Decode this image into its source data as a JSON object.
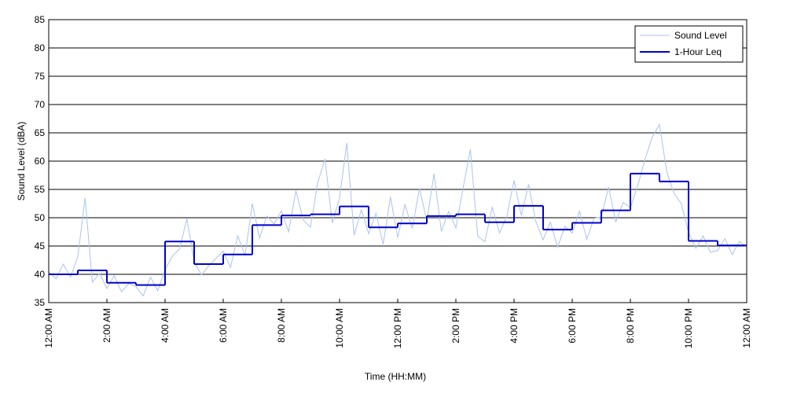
{
  "chart_data": {
    "type": "line",
    "xlabel": "Time (HH:MM)",
    "ylabel": "Sound Level (dBA)",
    "xlim": [
      0,
      24
    ],
    "ylim": [
      35,
      85
    ],
    "xticks": [
      {
        "value": 0,
        "label": "12:00 AM"
      },
      {
        "value": 2,
        "label": "2:00 AM"
      },
      {
        "value": 4,
        "label": "4:00 AM"
      },
      {
        "value": 6,
        "label": "6:00 AM"
      },
      {
        "value": 8,
        "label": "8:00 AM"
      },
      {
        "value": 10,
        "label": "10:00 AM"
      },
      {
        "value": 12,
        "label": "12:00 PM"
      },
      {
        "value": 14,
        "label": "2:00 PM"
      },
      {
        "value": 16,
        "label": "4:00 PM"
      },
      {
        "value": 18,
        "label": "6:00 PM"
      },
      {
        "value": 20,
        "label": "8:00 PM"
      },
      {
        "value": 22,
        "label": "10:00 PM"
      },
      {
        "value": 24,
        "label": "12:00 AM"
      }
    ],
    "yticks": [
      35,
      40,
      45,
      50,
      55,
      60,
      65,
      70,
      75,
      80,
      85
    ],
    "grid": true,
    "legend": "upper right",
    "series": [
      {
        "name": "Sound Level",
        "color": "#a9c3f0",
        "x": [
          0,
          0.25,
          0.5,
          0.75,
          1,
          1.25,
          1.5,
          1.75,
          2,
          2.25,
          2.5,
          2.75,
          3,
          3.25,
          3.5,
          3.75,
          4,
          4.25,
          4.5,
          4.75,
          5,
          5.25,
          5.5,
          5.75,
          6,
          6.25,
          6.5,
          6.75,
          7,
          7.25,
          7.5,
          7.75,
          8,
          8.25,
          8.5,
          8.75,
          9,
          9.25,
          9.5,
          9.75,
          10,
          10.25,
          10.5,
          10.75,
          11,
          11.25,
          11.5,
          11.75,
          12,
          12.25,
          12.5,
          12.75,
          13,
          13.25,
          13.5,
          13.75,
          14,
          14.25,
          14.5,
          14.75,
          15,
          15.25,
          15.5,
          15.75,
          16,
          16.25,
          16.5,
          16.75,
          17,
          17.25,
          17.5,
          17.75,
          18,
          18.25,
          18.5,
          18.75,
          19,
          19.25,
          19.5,
          19.75,
          20,
          20.25,
          20.5,
          20.75,
          21,
          21.25,
          21.5,
          21.75,
          22,
          22.25,
          22.5,
          22.75,
          23,
          23.25,
          23.5,
          23.75,
          24
        ],
        "values": [
          40.5,
          39.2,
          41.8,
          39.5,
          43.1,
          53.5,
          38.6,
          40.2,
          37.5,
          39.8,
          36.9,
          38.4,
          37.8,
          36.2,
          39.5,
          37.1,
          40.8,
          43.2,
          44.5,
          49.8,
          42.3,
          39.9,
          41.5,
          42.8,
          44.1,
          41.2,
          46.8,
          43.3,
          52.5,
          46.4,
          50.3,
          48.9,
          51.2,
          47.5,
          54.8,
          49.6,
          48.3,
          56.2,
          60.4,
          49.1,
          53.5,
          63.2,
          46.9,
          51.4,
          47.2,
          50.8,
          45.3,
          53.7,
          46.5,
          52.3,
          48.1,
          55.2,
          49.4,
          57.8,
          47.6,
          51.1,
          48.2,
          55.3,
          62.1,
          46.7,
          45.8,
          51.9,
          47.3,
          50.2,
          56.6,
          50.4,
          55.9,
          49.3,
          46.1,
          49.2,
          44.8,
          48.5,
          47.3,
          51.2,
          46.2,
          49.9,
          50.1,
          55.4,
          49.3,
          52.7,
          51.8,
          55.6,
          60.3,
          64.2,
          66.5,
          58.1,
          54.3,
          52.5,
          47.4,
          44.6,
          46.8,
          43.9,
          44.2,
          46.3,
          43.5,
          45.8,
          44.8
        ]
      },
      {
        "name": "1-Hour Leq",
        "color": "#0000cc",
        "bins": [
          0,
          1,
          2,
          3,
          4,
          5,
          6,
          7,
          8,
          9,
          10,
          11,
          12,
          13,
          14,
          15,
          16,
          17,
          18,
          19,
          20,
          21,
          22,
          23,
          24
        ],
        "values": [
          40.0,
          40.7,
          38.5,
          38.1,
          45.8,
          41.8,
          43.5,
          48.7,
          50.4,
          50.6,
          52.0,
          48.3,
          49.0,
          50.3,
          50.6,
          49.2,
          52.1,
          47.9,
          49.1,
          51.3,
          57.8,
          56.4,
          45.9,
          45.1
        ]
      }
    ]
  }
}
